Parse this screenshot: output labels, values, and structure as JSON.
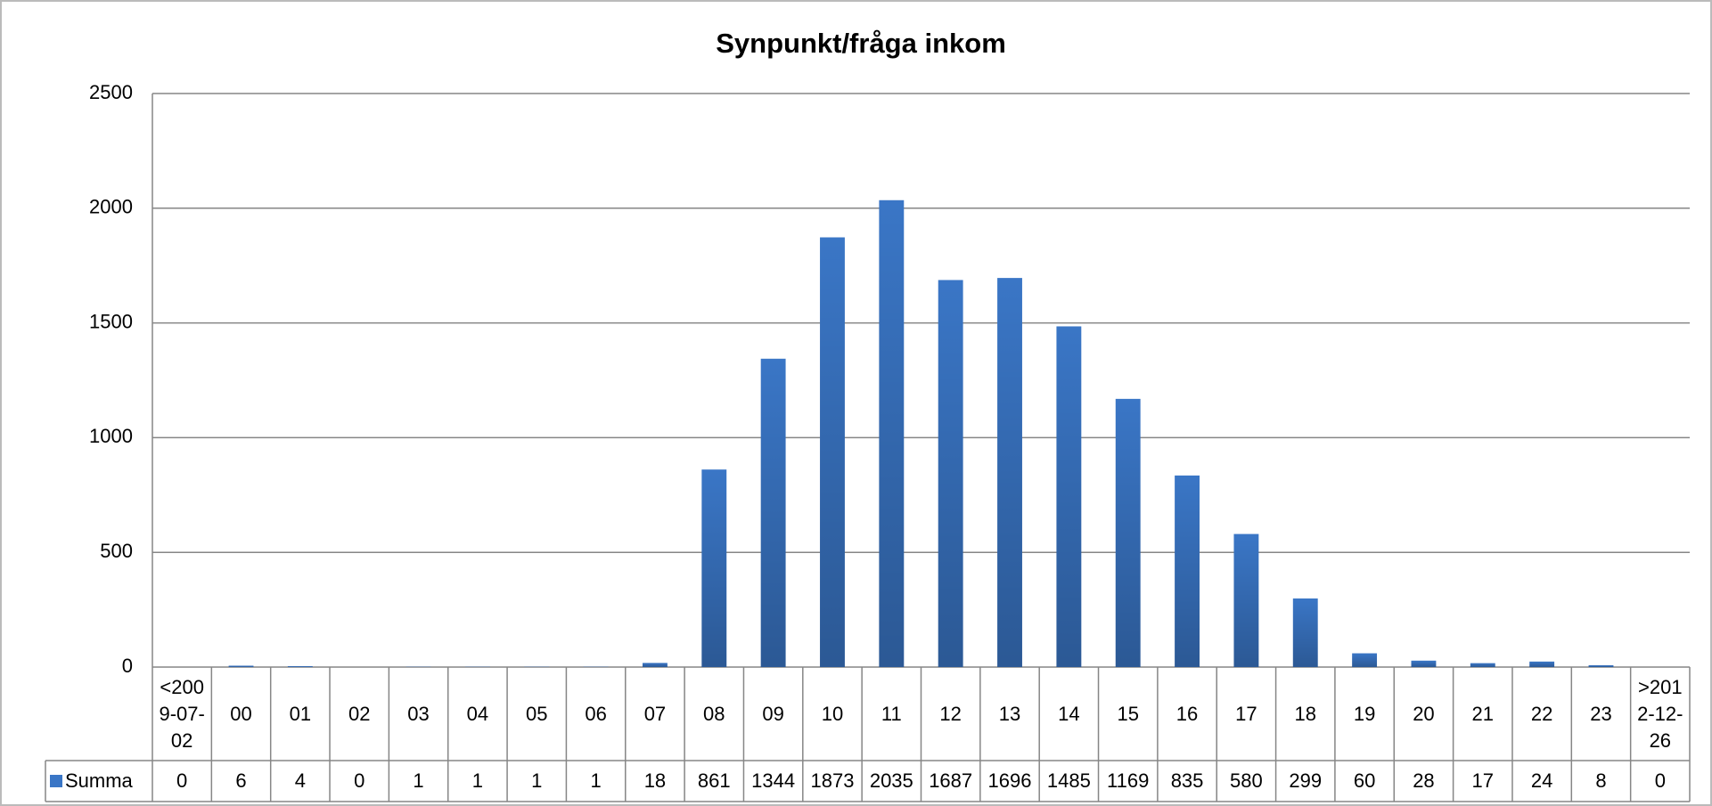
{
  "chart_data": {
    "type": "bar",
    "title": "Synpunkt/fråga inkom",
    "categories": [
      "<2009-07-02",
      "00",
      "01",
      "02",
      "03",
      "04",
      "05",
      "06",
      "07",
      "08",
      "09",
      "10",
      "11",
      "12",
      "13",
      "14",
      "15",
      "16",
      "17",
      "18",
      "19",
      "20",
      "21",
      "22",
      "23",
      ">2012-12-26"
    ],
    "series": [
      {
        "name": "Summa",
        "color": "#3a76c6",
        "values": [
          0,
          6,
          4,
          0,
          1,
          1,
          1,
          1,
          18,
          861,
          1344,
          1873,
          2035,
          1687,
          1696,
          1485,
          1169,
          835,
          580,
          299,
          60,
          28,
          17,
          24,
          8,
          0
        ]
      }
    ],
    "ylim": [
      0,
      2500
    ],
    "yticks": [
      0,
      500,
      1000,
      1500,
      2000,
      2500
    ],
    "grid": true,
    "data_table": true
  }
}
